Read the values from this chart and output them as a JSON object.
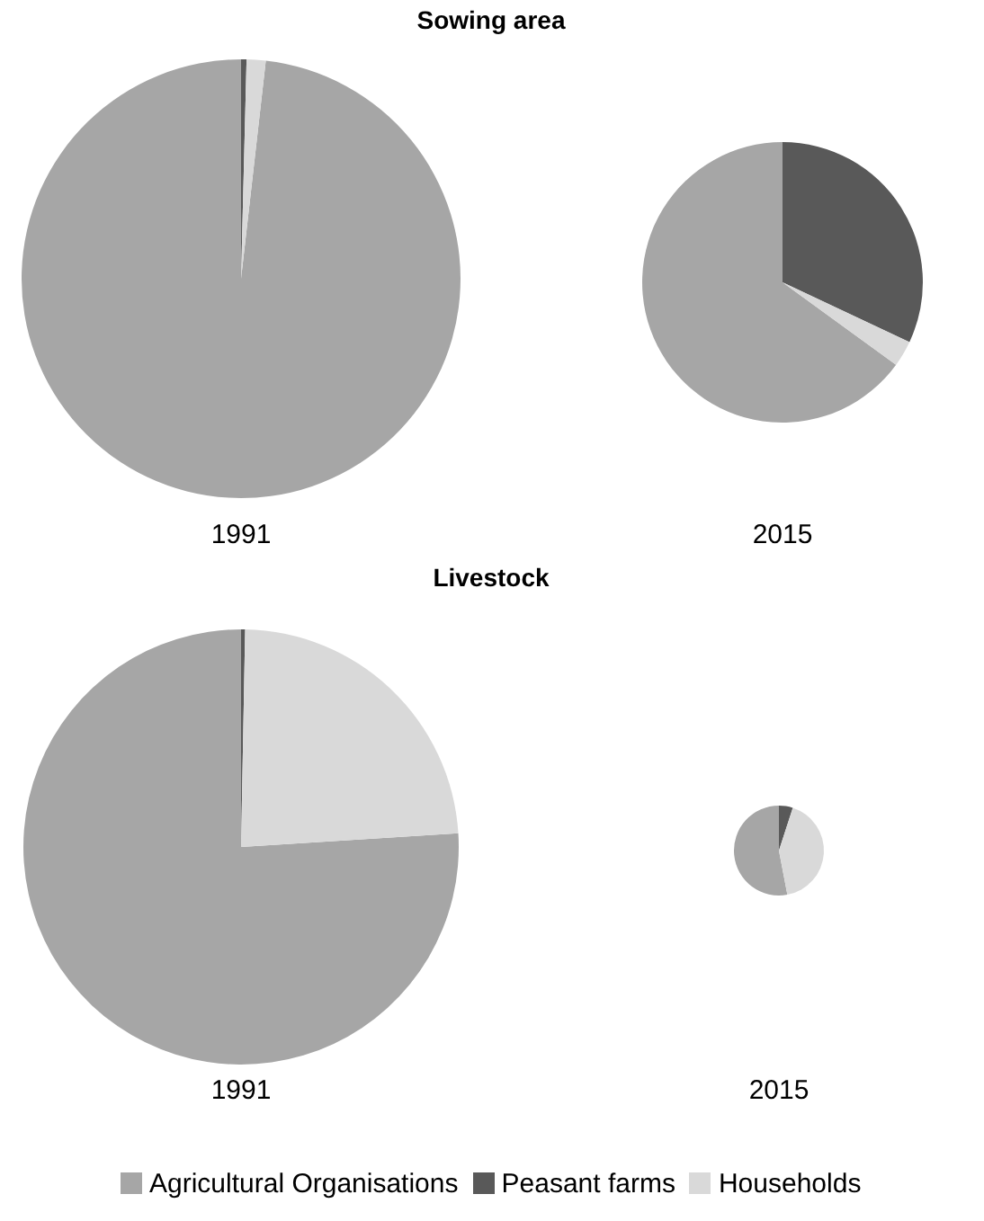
{
  "chart_data": [
    {
      "type": "pie",
      "title": "Sowing area",
      "xlabel": "1991",
      "categories": [
        null,
        null,
        null
      ],
      "values": [
        98.2,
        0.4,
        1.4
      ],
      "colors": [
        "#a6a6a6",
        "#595959",
        "#d9d9d9"
      ]
    },
    {
      "type": "pie",
      "xlabel": "2015",
      "categories": [
        null,
        null,
        null
      ],
      "values": [
        65,
        32,
        3
      ],
      "colors": [
        "#a6a6a6",
        "#595959",
        "#d9d9d9"
      ]
    },
    {
      "type": "pie",
      "title": "Livestock",
      "xlabel": "1991",
      "categories": [
        null,
        null,
        null
      ],
      "values": [
        76,
        0.3,
        23.7
      ],
      "colors": [
        "#a6a6a6",
        "#595959",
        "#d9d9d9"
      ]
    },
    {
      "type": "pie",
      "xlabel": "2015",
      "categories": [
        "Agricultural Organisations",
        "Peasant farms",
        "Households"
      ],
      "values": [
        53,
        5,
        42
      ],
      "colors": [
        "#a6a6a6",
        "#595959",
        "#d9d9d9"
      ],
      "legend": "bottom"
    }
  ]
}
